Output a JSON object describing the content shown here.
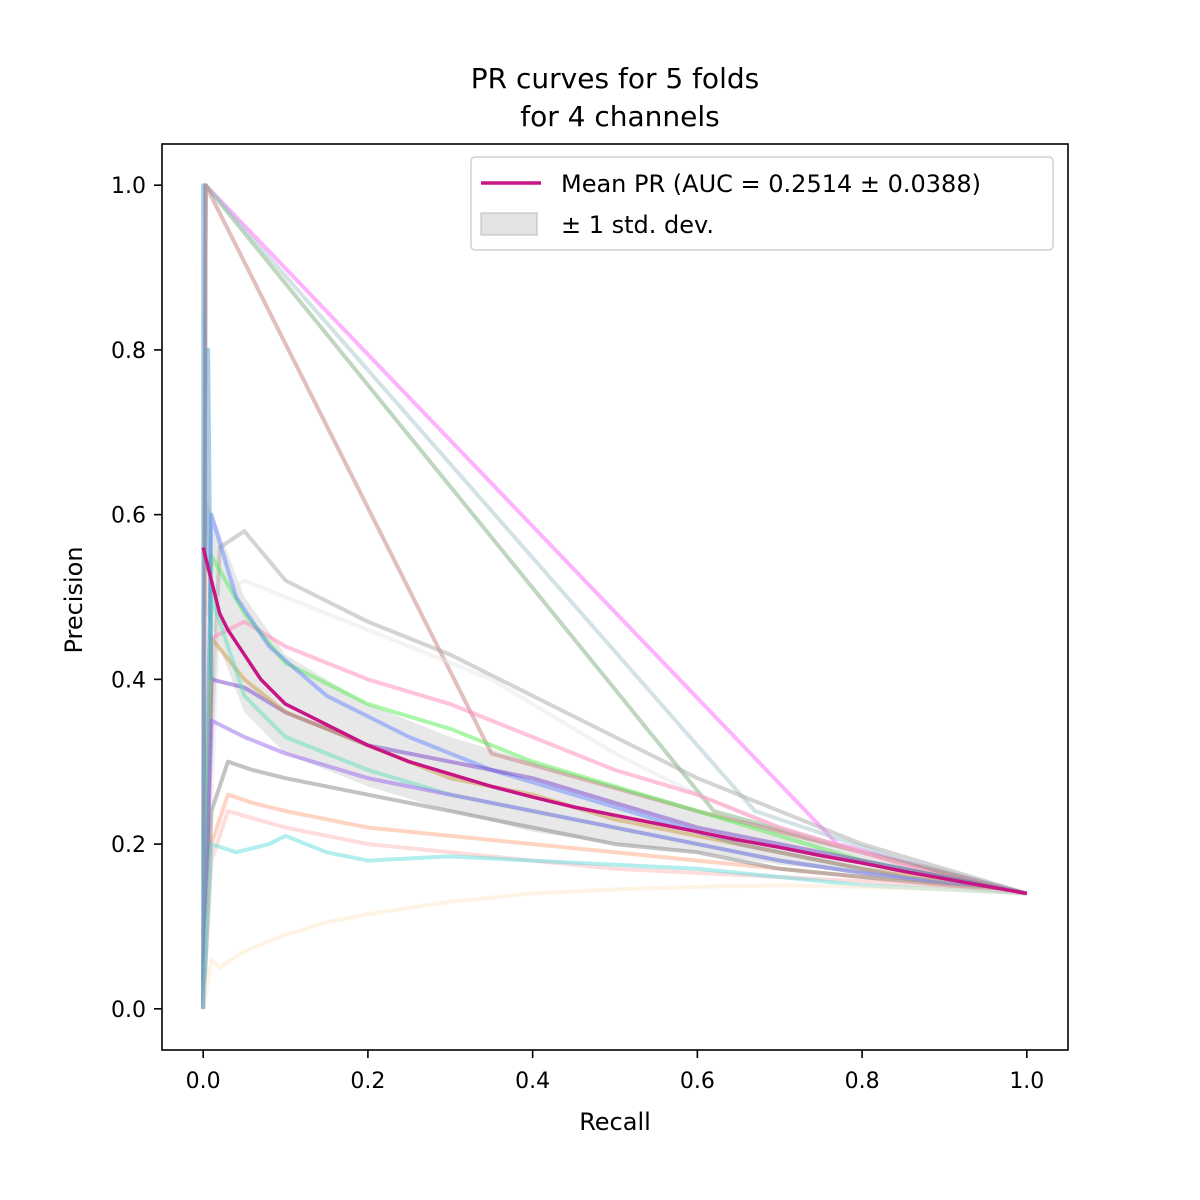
{
  "chart_data": {
    "type": "line",
    "title_lines": [
      "PR curves for 5 folds",
      "for 4 channels"
    ],
    "xlabel": "Recall",
    "ylabel": "Precision",
    "xlim": [
      -0.05,
      1.05
    ],
    "ylim": [
      -0.05,
      1.05
    ],
    "xticks": [
      0.0,
      0.2,
      0.4,
      0.6,
      0.8,
      1.0
    ],
    "yticks": [
      0.0,
      0.2,
      0.4,
      0.6,
      0.8,
      1.0
    ],
    "tick_labels_x": [
      "0.0",
      "0.2",
      "0.4",
      "0.6",
      "0.8",
      "1.0"
    ],
    "tick_labels_y": [
      "0.0",
      "0.2",
      "0.4",
      "0.6",
      "0.8",
      "1.0"
    ],
    "legend": {
      "placement": "top-right",
      "entries": [
        {
          "label": "Mean PR (AUC = 0.2514 ± 0.0388)",
          "color": "#c71585",
          "kind": "line"
        },
        {
          "label": "± 1 std. dev.",
          "color": "#cccccc",
          "kind": "patch"
        }
      ]
    },
    "mean_series": {
      "color": "#c71585",
      "x": [
        0.0,
        0.01,
        0.02,
        0.03,
        0.05,
        0.07,
        0.1,
        0.13,
        0.15,
        0.2,
        0.25,
        0.3,
        0.35,
        0.4,
        0.45,
        0.5,
        0.55,
        0.6,
        0.65,
        0.7,
        0.75,
        0.8,
        0.85,
        0.9,
        0.95,
        1.0
      ],
      "y": [
        0.56,
        0.52,
        0.48,
        0.46,
        0.43,
        0.4,
        0.37,
        0.355,
        0.345,
        0.32,
        0.3,
        0.285,
        0.27,
        0.257,
        0.245,
        0.235,
        0.225,
        0.215,
        0.205,
        0.196,
        0.186,
        0.177,
        0.167,
        0.158,
        0.149,
        0.14
      ]
    },
    "std_band": {
      "color": "#cccccc",
      "x": [
        0.0,
        0.05,
        0.1,
        0.2,
        0.3,
        0.4,
        0.5,
        0.6,
        0.7,
        0.8,
        0.9,
        1.0
      ],
      "upper": [
        0.63,
        0.5,
        0.43,
        0.37,
        0.33,
        0.3,
        0.27,
        0.24,
        0.22,
        0.19,
        0.165,
        0.142
      ],
      "lower": [
        0.49,
        0.36,
        0.31,
        0.27,
        0.24,
        0.215,
        0.2,
        0.19,
        0.175,
        0.165,
        0.152,
        0.138
      ]
    },
    "fold_curves": [
      {
        "color": "#ff66ff",
        "x": [
          0.0,
          0.003,
          0.77,
          1.0
        ],
        "y": [
          0.0,
          1.0,
          0.2,
          0.14
        ]
      },
      {
        "color": "#7fb07f",
        "x": [
          0.0,
          0.003,
          0.62,
          0.8,
          1.0
        ],
        "y": [
          0.0,
          1.0,
          0.24,
          0.19,
          0.14
        ]
      },
      {
        "color": "#a5c5cc",
        "x": [
          0.0,
          0.003,
          0.67,
          0.85,
          1.0
        ],
        "y": [
          0.0,
          1.0,
          0.24,
          0.18,
          0.14
        ]
      },
      {
        "color": "#c58080",
        "x": [
          0.0,
          0.003,
          0.35,
          0.6,
          0.8,
          1.0
        ],
        "y": [
          0.0,
          1.0,
          0.31,
          0.24,
          0.19,
          0.14
        ]
      },
      {
        "color": "#aaaaaa",
        "x": [
          0.0,
          0.005,
          0.02,
          0.05,
          0.1,
          0.2,
          0.3,
          0.4,
          0.5,
          0.6,
          0.7,
          0.8,
          0.9,
          1.0
        ],
        "y": [
          0.0,
          0.2,
          0.56,
          0.58,
          0.52,
          0.47,
          0.43,
          0.38,
          0.33,
          0.28,
          0.24,
          0.2,
          0.17,
          0.14
        ]
      },
      {
        "color": "#e8e8e8",
        "x": [
          0.0,
          0.02,
          0.05,
          0.1,
          0.15,
          0.2,
          0.25,
          0.3,
          0.35,
          0.4,
          0.5,
          0.6,
          0.7,
          0.8,
          0.9,
          1.0
        ],
        "y": [
          0.0,
          0.5,
          0.52,
          0.5,
          0.48,
          0.46,
          0.44,
          0.42,
          0.4,
          0.37,
          0.31,
          0.26,
          0.22,
          0.19,
          0.16,
          0.14
        ]
      },
      {
        "color": "#ff88bb",
        "x": [
          0.0,
          0.01,
          0.05,
          0.1,
          0.2,
          0.3,
          0.4,
          0.5,
          0.6,
          0.7,
          0.8,
          0.9,
          1.0
        ],
        "y": [
          0.0,
          0.45,
          0.47,
          0.44,
          0.4,
          0.37,
          0.33,
          0.29,
          0.26,
          0.22,
          0.19,
          0.16,
          0.14
        ]
      },
      {
        "color": "#55ee55",
        "x": [
          0.0,
          0.01,
          0.05,
          0.1,
          0.2,
          0.3,
          0.4,
          0.5,
          0.6,
          0.7,
          0.8,
          0.9,
          1.0
        ],
        "y": [
          0.0,
          0.55,
          0.48,
          0.42,
          0.37,
          0.34,
          0.3,
          0.27,
          0.24,
          0.21,
          0.18,
          0.16,
          0.14
        ]
      },
      {
        "color": "#6688ff",
        "x": [
          0.0,
          0.01,
          0.04,
          0.08,
          0.15,
          0.25,
          0.35,
          0.45,
          0.55,
          0.65,
          0.75,
          0.85,
          1.0
        ],
        "y": [
          0.0,
          0.6,
          0.5,
          0.44,
          0.38,
          0.33,
          0.29,
          0.26,
          0.23,
          0.2,
          0.18,
          0.16,
          0.14
        ]
      },
      {
        "color": "#7744cc",
        "x": [
          0.0,
          0.01,
          0.05,
          0.1,
          0.2,
          0.3,
          0.4,
          0.5,
          0.6,
          0.7,
          0.8,
          0.9,
          1.0
        ],
        "y": [
          0.0,
          0.4,
          0.39,
          0.36,
          0.32,
          0.3,
          0.28,
          0.25,
          0.22,
          0.2,
          0.18,
          0.16,
          0.14
        ]
      },
      {
        "color": "#cc9944",
        "x": [
          0.0,
          0.01,
          0.05,
          0.1,
          0.2,
          0.3,
          0.4,
          0.5,
          0.6,
          0.7,
          0.8,
          0.9,
          1.0
        ],
        "y": [
          0.0,
          0.45,
          0.4,
          0.36,
          0.32,
          0.28,
          0.26,
          0.23,
          0.21,
          0.19,
          0.17,
          0.155,
          0.14
        ]
      },
      {
        "color": "#66ddbb",
        "x": [
          0.0,
          0.01,
          0.05,
          0.1,
          0.2,
          0.3,
          0.4,
          0.5,
          0.6,
          0.7,
          0.8,
          0.9,
          1.0
        ],
        "y": [
          0.0,
          0.5,
          0.38,
          0.33,
          0.29,
          0.26,
          0.24,
          0.22,
          0.2,
          0.18,
          0.165,
          0.152,
          0.14
        ]
      },
      {
        "color": "#9966ee",
        "x": [
          0.0,
          0.01,
          0.05,
          0.1,
          0.2,
          0.3,
          0.4,
          0.5,
          0.6,
          0.7,
          0.8,
          0.9,
          1.0
        ],
        "y": [
          0.0,
          0.35,
          0.33,
          0.31,
          0.28,
          0.26,
          0.24,
          0.22,
          0.2,
          0.18,
          0.165,
          0.152,
          0.14
        ]
      },
      {
        "color": "#ffaa88",
        "x": [
          0.0,
          0.01,
          0.03,
          0.06,
          0.1,
          0.2,
          0.3,
          0.4,
          0.5,
          0.6,
          0.7,
          0.8,
          0.9,
          1.0
        ],
        "y": [
          0.0,
          0.2,
          0.26,
          0.25,
          0.24,
          0.22,
          0.21,
          0.2,
          0.19,
          0.18,
          0.17,
          0.16,
          0.15,
          0.14
        ]
      },
      {
        "color": "#888888",
        "x": [
          0.0,
          0.01,
          0.03,
          0.06,
          0.1,
          0.2,
          0.3,
          0.4,
          0.5,
          0.6,
          0.7,
          0.8,
          0.9,
          1.0
        ],
        "y": [
          0.0,
          0.24,
          0.3,
          0.29,
          0.28,
          0.26,
          0.24,
          0.22,
          0.2,
          0.19,
          0.17,
          0.16,
          0.15,
          0.14
        ]
      },
      {
        "color": "#ffbbbb",
        "x": [
          0.0,
          0.01,
          0.03,
          0.1,
          0.2,
          0.3,
          0.4,
          0.5,
          0.6,
          0.7,
          0.8,
          0.9,
          1.0
        ],
        "y": [
          0.0,
          0.18,
          0.24,
          0.22,
          0.2,
          0.19,
          0.18,
          0.17,
          0.165,
          0.16,
          0.155,
          0.148,
          0.14
        ]
      },
      {
        "color": "#66dddd",
        "x": [
          0.0,
          0.01,
          0.04,
          0.08,
          0.1,
          0.15,
          0.2,
          0.3,
          0.4,
          0.5,
          0.6,
          0.7,
          0.8,
          0.9,
          1.0
        ],
        "y": [
          0.0,
          0.2,
          0.19,
          0.2,
          0.21,
          0.19,
          0.18,
          0.185,
          0.18,
          0.175,
          0.17,
          0.16,
          0.15,
          0.145,
          0.14
        ]
      },
      {
        "color": "#ffe8cc",
        "x": [
          0.0,
          0.01,
          0.02,
          0.05,
          0.1,
          0.15,
          0.2,
          0.3,
          0.4,
          0.5,
          0.6,
          0.7,
          0.8,
          0.9,
          1.0
        ],
        "y": [
          0.0,
          0.06,
          0.05,
          0.07,
          0.09,
          0.105,
          0.115,
          0.13,
          0.14,
          0.145,
          0.148,
          0.15,
          0.148,
          0.145,
          0.14
        ]
      },
      {
        "color": "#5599cc",
        "x": [
          0.0,
          0.0,
          0.003,
          0.006,
          0.01
        ],
        "y": [
          0.0,
          1.0,
          0.55,
          0.8,
          0.4
        ]
      }
    ]
  }
}
